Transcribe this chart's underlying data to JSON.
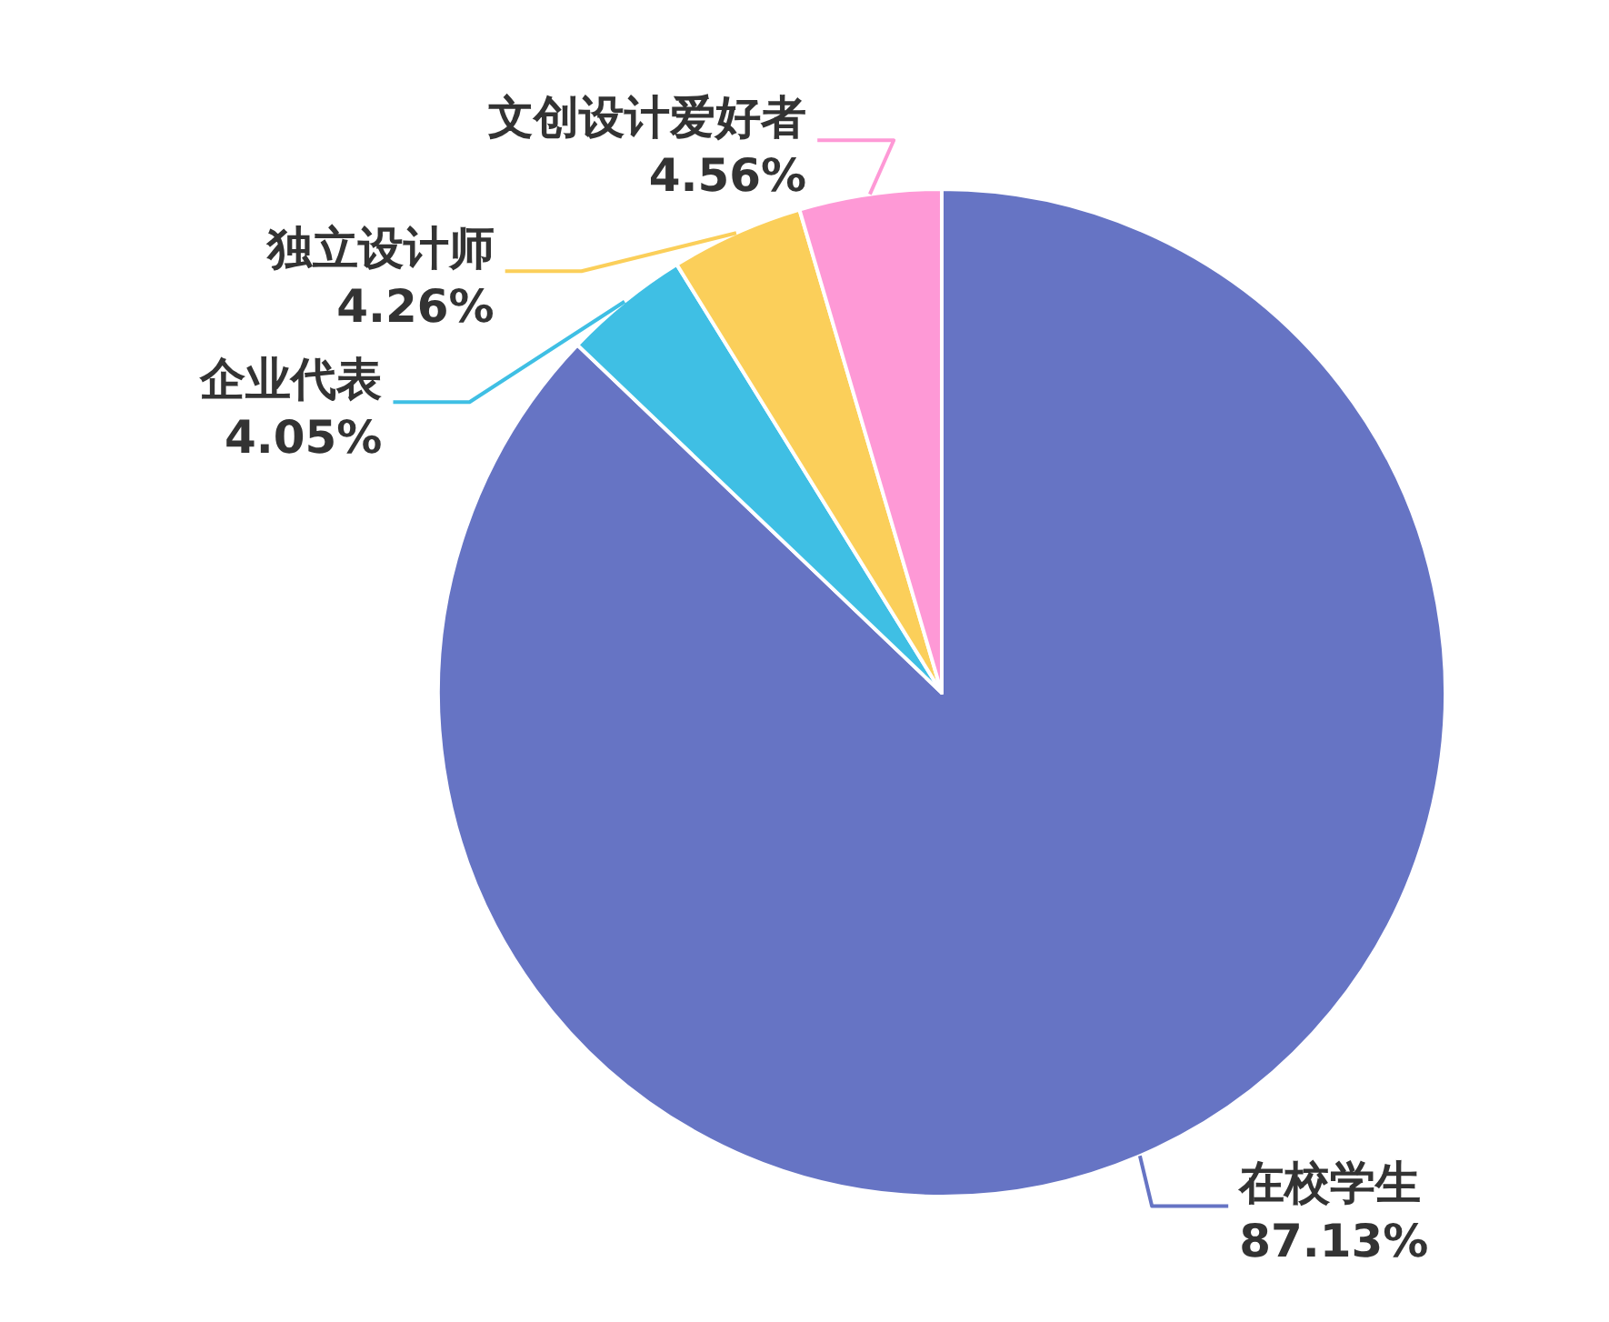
{
  "chart_data": {
    "type": "pie",
    "categories": [
      "在校学生",
      "企业代表",
      "独立设计师",
      "文创设计爱好者"
    ],
    "values": [
      87.13,
      4.05,
      4.26,
      4.56
    ],
    "colors": [
      "#6674c4",
      "#3fbfe4",
      "#fbcf5a",
      "#fe99d6"
    ],
    "value_labels": [
      "87.13%",
      "4.05%",
      "4.26%",
      "4.56%"
    ]
  }
}
